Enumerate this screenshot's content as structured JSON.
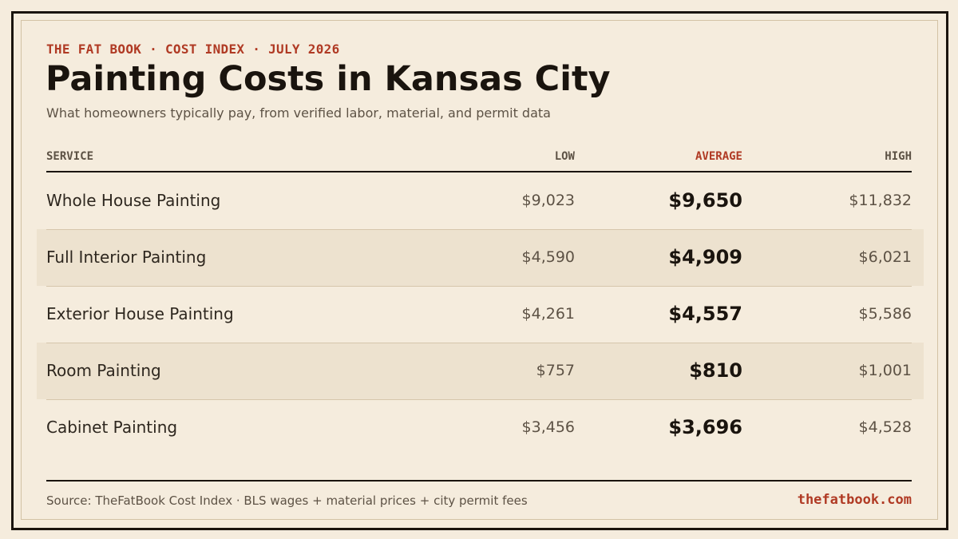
{
  "header": {
    "kicker": "THE FAT BOOK · COST INDEX · JULY 2026",
    "title": "Painting Costs in Kansas City",
    "subtitle": "What homeowners typically pay, from verified labor, material, and permit data"
  },
  "colors": {
    "background": "#f5ecdd",
    "accent": "#b03a24",
    "ink": "#1a140e",
    "muted": "#5d5245",
    "row_shade": "#ede2cf"
  },
  "chart_data": {
    "type": "table",
    "columns": [
      "SERVICE",
      "LOW",
      "AVERAGE",
      "HIGH"
    ],
    "rows": [
      {
        "service": "Whole House Painting",
        "low": "$9,023",
        "average": "$9,650",
        "high": "$11,832"
      },
      {
        "service": "Full Interior Painting",
        "low": "$4,590",
        "average": "$4,909",
        "high": "$6,021"
      },
      {
        "service": "Exterior House Painting",
        "low": "$4,261",
        "average": "$4,557",
        "high": "$5,586"
      },
      {
        "service": "Room Painting",
        "low": "$757",
        "average": "$810",
        "high": "$1,001"
      },
      {
        "service": "Cabinet Painting",
        "low": "$3,456",
        "average": "$3,696",
        "high": "$4,528"
      }
    ]
  },
  "footer": {
    "source": "Source: TheFatBook Cost Index · BLS wages + material prices + city permit fees",
    "site": "thefatbook.com"
  }
}
